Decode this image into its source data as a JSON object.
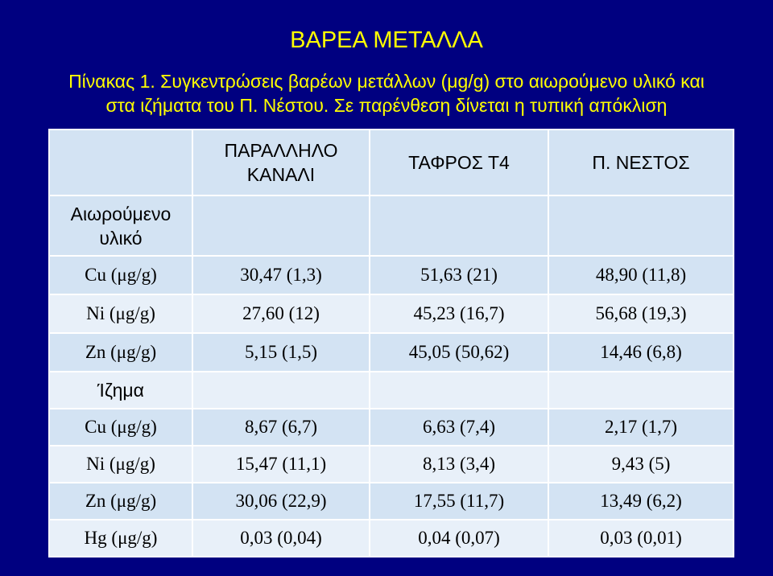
{
  "title": "ΒΑΡΕΑ ΜΕΤΑΛΛΑ",
  "caption_line1": "Πίνακας 1. Συγκεντρώσεις βαρέων μετάλλων (μg/g) στο αιωρούμενο υλικό και",
  "caption_line2": "στα ιζήματα του Π. Νέστου. Σε παρένθεση δίνεται η τυπική απόκλιση",
  "table": {
    "columns": [
      {
        "line1": "ΠΑΡΑΛΛΗΛΟ",
        "line2": "ΚΑΝΑΛΙ"
      },
      {
        "line1": "ΤΑΦΡΟΣ Τ4",
        "line2": ""
      },
      {
        "line1": "Π. ΝΕΣΤΟΣ",
        "line2": ""
      }
    ],
    "section_suspended": {
      "line1": "Αιωρούμενο",
      "line2": "υλικό"
    },
    "suspended_rows": [
      {
        "label": "Cu (μg/g)",
        "values": [
          "30,47 (1,3)",
          "51,63 (21)",
          "48,90 (11,8)"
        ]
      },
      {
        "label": "Ni (μg/g)",
        "values": [
          "27,60 (12)",
          "45,23 (16,7)",
          "56,68 (19,3)"
        ]
      },
      {
        "label": "Zn (μg/g)",
        "values": [
          "5,15 (1,5)",
          "45,05 (50,62)",
          "14,46 (6,8)"
        ]
      }
    ],
    "section_sediment": "Ίζημα",
    "sediment_rows": [
      {
        "label": "Cu (μg/g)",
        "values": [
          "8,67 (6,7)",
          "6,63 (7,4)",
          "2,17 (1,7)"
        ]
      },
      {
        "label": "Ni (μg/g)",
        "values": [
          "15,47 (11,1)",
          "8,13 (3,4)",
          "9,43 (5)"
        ]
      },
      {
        "label": "Zn (μg/g)",
        "values": [
          "30,06 (22,9)",
          "17,55 (11,7)",
          "13,49 (6,2)"
        ]
      },
      {
        "label": "Hg (μg/g)",
        "values": [
          "0,03 (0,04)",
          "0,04 (0,07)",
          "0,03 (0,01)"
        ]
      }
    ]
  }
}
